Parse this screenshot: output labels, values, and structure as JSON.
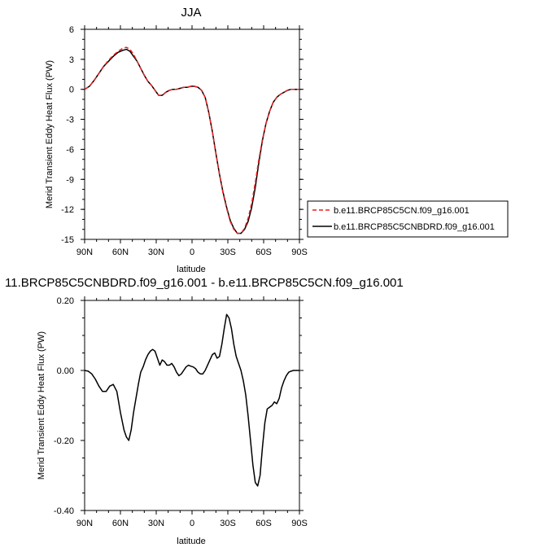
{
  "chart_data": [
    {
      "type": "line",
      "title": "JJA",
      "xlabel": "latitude",
      "ylabel": "Merid Transient Eddy Heat Flux (PW)",
      "x_ticks": [
        "90N",
        "60N",
        "30N",
        "0",
        "30S",
        "60S",
        "90S"
      ],
      "y_ticks": [
        "6",
        "3",
        "0",
        "-3",
        "-6",
        "-9",
        "-12",
        "-15"
      ],
      "xlim": [
        90,
        -90
      ],
      "ylim": [
        -15,
        6
      ],
      "x_units": "latitude (degrees, positive = N)",
      "legend_position": "right",
      "series": [
        {
          "name": "b.e11.BRCP85C5CN.f09_g16.001",
          "color": "#e8201f",
          "dash": "dashed",
          "x": [
            90,
            86,
            82,
            78,
            74,
            70,
            66,
            62,
            58,
            55,
            52,
            49,
            46,
            43,
            40,
            37,
            34,
            31,
            28,
            25,
            22,
            19,
            16,
            13,
            10,
            7,
            4,
            1,
            -2,
            -5,
            -8,
            -11,
            -14,
            -17,
            -20,
            -23,
            -26,
            -29,
            -32,
            -35,
            -38,
            -41,
            -44,
            -47,
            -50,
            -53,
            -56,
            -59,
            -62,
            -65,
            -68,
            -71,
            -74,
            -77,
            -80,
            -83,
            -86,
            -90
          ],
          "y": [
            0.0,
            0.3,
            0.9,
            1.6,
            2.3,
            2.9,
            3.4,
            3.8,
            4.1,
            4.2,
            4.0,
            3.5,
            2.8,
            2.1,
            1.4,
            0.8,
            0.4,
            -0.1,
            -0.6,
            -0.6,
            -0.3,
            -0.1,
            0.0,
            0.0,
            0.1,
            0.2,
            0.2,
            0.3,
            0.3,
            0.2,
            -0.1,
            -0.8,
            -2.3,
            -4.2,
            -6.4,
            -8.5,
            -10.4,
            -11.9,
            -13.2,
            -14.0,
            -14.4,
            -14.4,
            -13.9,
            -12.9,
            -11.4,
            -9.3,
            -7.0,
            -5.0,
            -3.4,
            -2.2,
            -1.3,
            -0.8,
            -0.5,
            -0.3,
            -0.1,
            0.0,
            0.0,
            0.0
          ]
        },
        {
          "name": "b.e11.BRCP85C5CNBDRD.f09_g16.001",
          "color": "#000000",
          "dash": "solid",
          "x": [
            90,
            86,
            82,
            78,
            74,
            70,
            66,
            62,
            58,
            55,
            52,
            49,
            46,
            43,
            40,
            37,
            34,
            31,
            28,
            25,
            22,
            19,
            16,
            13,
            10,
            7,
            4,
            1,
            -2,
            -5,
            -8,
            -11,
            -14,
            -17,
            -20,
            -23,
            -26,
            -29,
            -32,
            -35,
            -38,
            -41,
            -44,
            -47,
            -50,
            -53,
            -56,
            -59,
            -62,
            -65,
            -68,
            -71,
            -74,
            -77,
            -80,
            -83,
            -86,
            -90
          ],
          "y": [
            0.0,
            0.3,
            0.9,
            1.6,
            2.3,
            2.8,
            3.3,
            3.7,
            3.9,
            4.0,
            3.8,
            3.3,
            2.8,
            2.1,
            1.4,
            0.8,
            0.4,
            -0.1,
            -0.6,
            -0.6,
            -0.3,
            -0.1,
            0.0,
            0.0,
            0.1,
            0.2,
            0.2,
            0.3,
            0.3,
            0.2,
            -0.1,
            -0.8,
            -2.3,
            -4.2,
            -6.4,
            -8.5,
            -10.3,
            -11.8,
            -13.1,
            -13.9,
            -14.4,
            -14.4,
            -14.0,
            -13.2,
            -11.8,
            -9.8,
            -7.3,
            -5.1,
            -3.4,
            -2.2,
            -1.3,
            -0.8,
            -0.5,
            -0.3,
            -0.1,
            0.0,
            0.0,
            0.0
          ]
        }
      ]
    },
    {
      "type": "line",
      "title": "11.BRCP85C5CNBDRD.f09_g16.001 - b.e11.BRCP85C5CN.f09_g16.001",
      "xlabel": "latitude",
      "ylabel": "Merid Transient Eddy Heat Flux (PW)",
      "x_ticks": [
        "90N",
        "60N",
        "30N",
        "0",
        "30S",
        "60S",
        "90S"
      ],
      "y_ticks": [
        "0.20",
        "0.00",
        "-0.20",
        "-0.40"
      ],
      "xlim": [
        90,
        -90
      ],
      "ylim": [
        -0.4,
        0.2
      ],
      "x_units": "latitude (degrees, positive = N)",
      "series": [
        {
          "color": "#000000",
          "dash": "solid",
          "x": [
            90,
            87,
            84,
            81,
            78,
            75,
            72,
            69,
            66,
            63,
            60,
            57,
            55,
            53,
            51,
            49,
            47,
            45,
            43,
            41,
            39,
            37,
            35,
            33,
            31,
            29,
            27,
            25,
            23,
            21,
            19,
            17,
            15,
            13,
            11,
            9,
            7,
            5,
            3,
            1,
            -1,
            -3,
            -5,
            -7,
            -9,
            -11,
            -13,
            -15,
            -17,
            -19,
            -21,
            -23,
            -25,
            -27,
            -29,
            -31,
            -33,
            -35,
            -37,
            -39,
            -41,
            -43,
            -45,
            -47,
            -49,
            -51,
            -53,
            -55,
            -57,
            -59,
            -61,
            -63,
            -65,
            -67,
            -69,
            -71,
            -73,
            -75,
            -77,
            -79,
            -81,
            -83,
            -85,
            -87,
            -90
          ],
          "y": [
            0.0,
            -0.002,
            -0.01,
            -0.025,
            -0.045,
            -0.06,
            -0.06,
            -0.045,
            -0.04,
            -0.06,
            -0.12,
            -0.17,
            -0.19,
            -0.2,
            -0.17,
            -0.12,
            -0.08,
            -0.04,
            -0.005,
            0.01,
            0.03,
            0.045,
            0.055,
            0.06,
            0.055,
            0.035,
            0.015,
            0.03,
            0.025,
            0.015,
            0.015,
            0.02,
            0.01,
            -0.005,
            -0.015,
            -0.01,
            0.0,
            0.01,
            0.015,
            0.012,
            0.01,
            0.005,
            -0.005,
            -0.01,
            -0.01,
            0.0,
            0.015,
            0.03,
            0.045,
            0.05,
            0.035,
            0.04,
            0.075,
            0.12,
            0.16,
            0.15,
            0.12,
            0.075,
            0.04,
            0.02,
            0.0,
            -0.03,
            -0.07,
            -0.13,
            -0.2,
            -0.27,
            -0.32,
            -0.33,
            -0.3,
            -0.22,
            -0.15,
            -0.11,
            -0.105,
            -0.1,
            -0.09,
            -0.095,
            -0.08,
            -0.05,
            -0.03,
            -0.015,
            -0.005,
            -0.002,
            0.0,
            0.0,
            0.0
          ]
        }
      ]
    }
  ]
}
